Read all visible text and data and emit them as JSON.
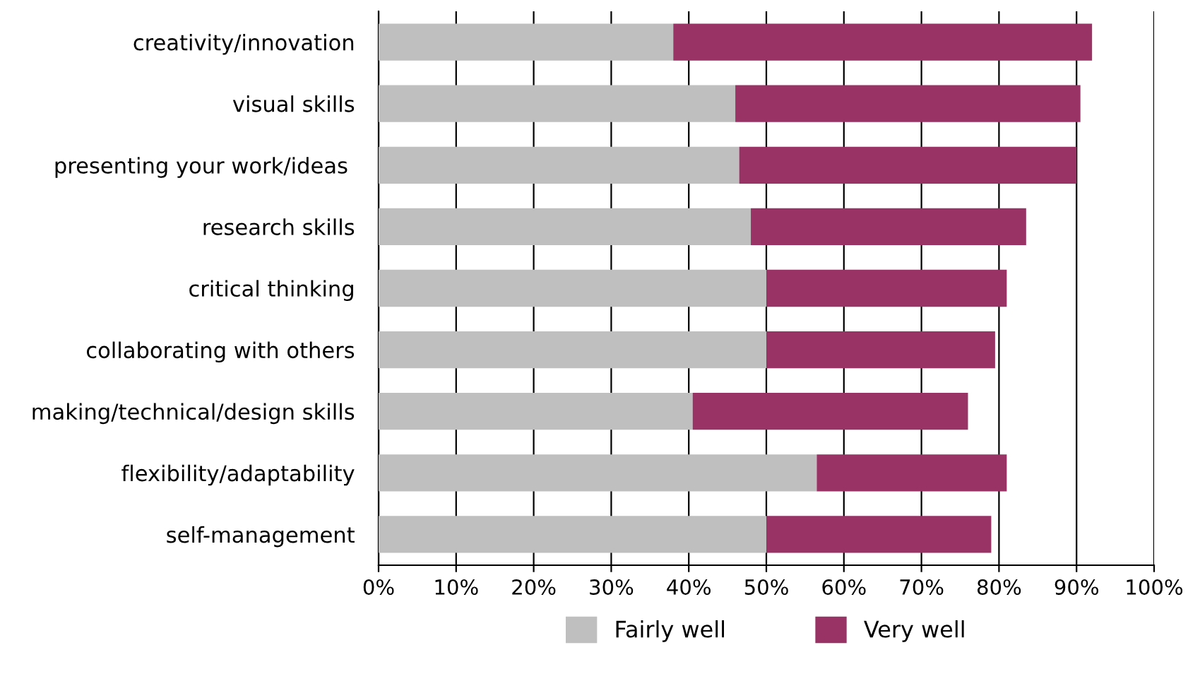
{
  "chart_data": {
    "type": "bar",
    "orientation": "horizontal",
    "stacked": true,
    "categories": [
      "creativity/innovation",
      "visual skills",
      "presenting your work/ideas ",
      "research skills",
      "critical thinking",
      "collaborating with others",
      "making/technical/design skills",
      "flexibility/adaptability",
      "self-management"
    ],
    "series": [
      {
        "name": "Fairly well",
        "color": "#bfbfbf",
        "values": [
          38,
          46,
          46.5,
          48,
          50,
          50,
          40.5,
          56.5,
          50
        ]
      },
      {
        "name": "Very well",
        "color": "#993366",
        "values": [
          54,
          44.5,
          43.5,
          35.5,
          31,
          29.5,
          35.5,
          24.5,
          29
        ]
      }
    ],
    "xlim": [
      0,
      100
    ],
    "xticks": [
      {
        "value": 0,
        "label": "0%"
      },
      {
        "value": 10,
        "label": "10%"
      },
      {
        "value": 20,
        "label": "20%"
      },
      {
        "value": 30,
        "label": "30%"
      },
      {
        "value": 40,
        "label": "40%"
      },
      {
        "value": 50,
        "label": "50%"
      },
      {
        "value": 60,
        "label": "60%"
      },
      {
        "value": 70,
        "label": "70%"
      },
      {
        "value": 80,
        "label": "80%"
      },
      {
        "value": 90,
        "label": "90%"
      },
      {
        "value": 100,
        "label": "100%"
      }
    ],
    "grid": "x",
    "legend": "bottom"
  }
}
